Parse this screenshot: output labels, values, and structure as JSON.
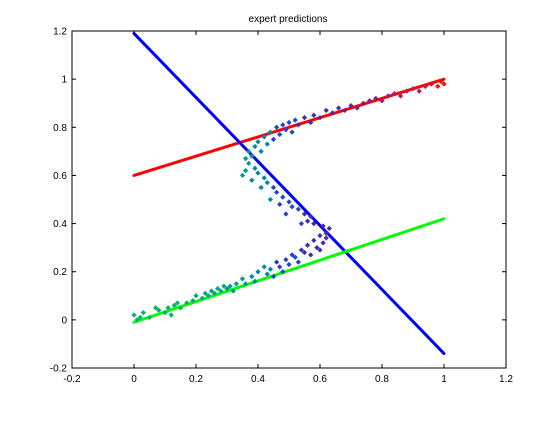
{
  "chart_data": {
    "type": "scatter",
    "title": "expert predictions",
    "xlabel": "",
    "ylabel": "",
    "xlim": [
      -0.2,
      1.2
    ],
    "ylim": [
      -0.2,
      1.2
    ],
    "grid": false,
    "x_ticks": [
      -0.2,
      0,
      0.2,
      0.4,
      0.6,
      0.8,
      1,
      1.2
    ],
    "y_ticks": [
      -0.2,
      0,
      0.2,
      0.4,
      0.6,
      0.8,
      1,
      1.2
    ],
    "x_tick_labels": [
      "-0.2",
      "0",
      "0.2",
      "0.4",
      "0.6",
      "0.8",
      "1",
      "1.2"
    ],
    "y_tick_labels": [
      "-0.2",
      "0",
      "0.2",
      "0.4",
      "0.6",
      "0.8",
      "1",
      "1.2"
    ],
    "lines": [
      {
        "color": "#ff0000",
        "x": [
          0,
          1
        ],
        "y": [
          0.6,
          1.0
        ]
      },
      {
        "color": "#0000ff",
        "x": [
          0,
          1
        ],
        "y": [
          1.19,
          -0.14
        ]
      },
      {
        "color": "#00ff00",
        "x": [
          0,
          1
        ],
        "y": [
          -0.01,
          0.42
        ]
      }
    ],
    "scatter_points": [
      {
        "x": 0.0,
        "y": 0.02,
        "color": "#00b36b"
      },
      {
        "x": 0.01,
        "y": 0.0,
        "color": "#00b36b"
      },
      {
        "x": 0.02,
        "y": 0.01,
        "color": "#00b36b"
      },
      {
        "x": 0.03,
        "y": 0.03,
        "color": "#00b36b"
      },
      {
        "x": 0.05,
        "y": 0.01,
        "color": "#00b36b"
      },
      {
        "x": 0.07,
        "y": 0.05,
        "color": "#00b36b"
      },
      {
        "x": 0.08,
        "y": 0.04,
        "color": "#00b36b"
      },
      {
        "x": 0.1,
        "y": 0.03,
        "color": "#00b36b"
      },
      {
        "x": 0.11,
        "y": 0.05,
        "color": "#00b36b"
      },
      {
        "x": 0.12,
        "y": 0.02,
        "color": "#00b36b"
      },
      {
        "x": 0.13,
        "y": 0.06,
        "color": "#00b36b"
      },
      {
        "x": 0.14,
        "y": 0.07,
        "color": "#00b36b"
      },
      {
        "x": 0.15,
        "y": 0.05,
        "color": "#00b36b"
      },
      {
        "x": 0.17,
        "y": 0.07,
        "color": "#00b36b"
      },
      {
        "x": 0.19,
        "y": 0.08,
        "color": "#00a880"
      },
      {
        "x": 0.2,
        "y": 0.1,
        "color": "#00a880"
      },
      {
        "x": 0.22,
        "y": 0.09,
        "color": "#00a880"
      },
      {
        "x": 0.23,
        "y": 0.11,
        "color": "#00a880"
      },
      {
        "x": 0.24,
        "y": 0.1,
        "color": "#00a880"
      },
      {
        "x": 0.25,
        "y": 0.12,
        "color": "#00a880"
      },
      {
        "x": 0.26,
        "y": 0.11,
        "color": "#00a880"
      },
      {
        "x": 0.27,
        "y": 0.13,
        "color": "#00a880"
      },
      {
        "x": 0.28,
        "y": 0.12,
        "color": "#00a880"
      },
      {
        "x": 0.29,
        "y": 0.14,
        "color": "#00a880"
      },
      {
        "x": 0.3,
        "y": 0.13,
        "color": "#009995"
      },
      {
        "x": 0.31,
        "y": 0.14,
        "color": "#009995"
      },
      {
        "x": 0.32,
        "y": 0.12,
        "color": "#009995"
      },
      {
        "x": 0.33,
        "y": 0.15,
        "color": "#009995"
      },
      {
        "x": 0.35,
        "y": 0.17,
        "color": "#009995"
      },
      {
        "x": 0.36,
        "y": 0.15,
        "color": "#009995"
      },
      {
        "x": 0.38,
        "y": 0.18,
        "color": "#0088a0"
      },
      {
        "x": 0.39,
        "y": 0.16,
        "color": "#0088a0"
      },
      {
        "x": 0.4,
        "y": 0.2,
        "color": "#0088a0"
      },
      {
        "x": 0.42,
        "y": 0.22,
        "color": "#0088a0"
      },
      {
        "x": 0.43,
        "y": 0.19,
        "color": "#0088a0"
      },
      {
        "x": 0.44,
        "y": 0.21,
        "color": "#0088a0"
      },
      {
        "x": 0.45,
        "y": 0.18,
        "color": "#2244cc"
      },
      {
        "x": 0.46,
        "y": 0.24,
        "color": "#2244cc"
      },
      {
        "x": 0.47,
        "y": 0.22,
        "color": "#2244cc"
      },
      {
        "x": 0.48,
        "y": 0.2,
        "color": "#2244cc"
      },
      {
        "x": 0.49,
        "y": 0.25,
        "color": "#2244cc"
      },
      {
        "x": 0.5,
        "y": 0.23,
        "color": "#2244cc"
      },
      {
        "x": 0.51,
        "y": 0.27,
        "color": "#2244cc"
      },
      {
        "x": 0.52,
        "y": 0.26,
        "color": "#2244cc"
      },
      {
        "x": 0.53,
        "y": 0.24,
        "color": "#2244cc"
      },
      {
        "x": 0.54,
        "y": 0.29,
        "color": "#3a2fb0"
      },
      {
        "x": 0.55,
        "y": 0.28,
        "color": "#3a2fb0"
      },
      {
        "x": 0.56,
        "y": 0.31,
        "color": "#3a2fb0"
      },
      {
        "x": 0.57,
        "y": 0.27,
        "color": "#3a2fb0"
      },
      {
        "x": 0.58,
        "y": 0.33,
        "color": "#3a2fb0"
      },
      {
        "x": 0.59,
        "y": 0.3,
        "color": "#3a2fb0"
      },
      {
        "x": 0.6,
        "y": 0.35,
        "color": "#4b2aa8"
      },
      {
        "x": 0.61,
        "y": 0.32,
        "color": "#4b2aa8"
      },
      {
        "x": 0.62,
        "y": 0.36,
        "color": "#4b2aa8"
      },
      {
        "x": 0.6,
        "y": 0.29,
        "color": "#4b2aa8"
      },
      {
        "x": 0.62,
        "y": 0.34,
        "color": "#4b2aa8"
      },
      {
        "x": 0.63,
        "y": 0.38,
        "color": "#4b2aa8"
      },
      {
        "x": 0.61,
        "y": 0.39,
        "color": "#4b2aa8"
      },
      {
        "x": 0.58,
        "y": 0.4,
        "color": "#3a2fb0"
      },
      {
        "x": 0.56,
        "y": 0.41,
        "color": "#3a2fb0"
      },
      {
        "x": 0.57,
        "y": 0.43,
        "color": "#3a2fb0"
      },
      {
        "x": 0.55,
        "y": 0.44,
        "color": "#3a2fb0"
      },
      {
        "x": 0.54,
        "y": 0.4,
        "color": "#2244cc"
      },
      {
        "x": 0.53,
        "y": 0.46,
        "color": "#2244cc"
      },
      {
        "x": 0.51,
        "y": 0.47,
        "color": "#2244cc"
      },
      {
        "x": 0.5,
        "y": 0.49,
        "color": "#2244cc"
      },
      {
        "x": 0.49,
        "y": 0.44,
        "color": "#2244cc"
      },
      {
        "x": 0.48,
        "y": 0.51,
        "color": "#2244cc"
      },
      {
        "x": 0.47,
        "y": 0.48,
        "color": "#2244cc"
      },
      {
        "x": 0.46,
        "y": 0.53,
        "color": "#2244cc"
      },
      {
        "x": 0.45,
        "y": 0.55,
        "color": "#2244cc"
      },
      {
        "x": 0.44,
        "y": 0.5,
        "color": "#0088a0"
      },
      {
        "x": 0.43,
        "y": 0.57,
        "color": "#0088a0"
      },
      {
        "x": 0.42,
        "y": 0.59,
        "color": "#0088a0"
      },
      {
        "x": 0.41,
        "y": 0.55,
        "color": "#0088a0"
      },
      {
        "x": 0.4,
        "y": 0.61,
        "color": "#0088a0"
      },
      {
        "x": 0.39,
        "y": 0.63,
        "color": "#0088a0"
      },
      {
        "x": 0.38,
        "y": 0.58,
        "color": "#0088a0"
      },
      {
        "x": 0.37,
        "y": 0.65,
        "color": "#009995"
      },
      {
        "x": 0.36,
        "y": 0.62,
        "color": "#009995"
      },
      {
        "x": 0.35,
        "y": 0.6,
        "color": "#009995"
      },
      {
        "x": 0.36,
        "y": 0.67,
        "color": "#009995"
      },
      {
        "x": 0.37,
        "y": 0.7,
        "color": "#009995"
      },
      {
        "x": 0.38,
        "y": 0.68,
        "color": "#009995"
      },
      {
        "x": 0.39,
        "y": 0.72,
        "color": "#0088a0"
      },
      {
        "x": 0.4,
        "y": 0.74,
        "color": "#0088a0"
      },
      {
        "x": 0.41,
        "y": 0.7,
        "color": "#0088a0"
      },
      {
        "x": 0.42,
        "y": 0.76,
        "color": "#0088a0"
      },
      {
        "x": 0.43,
        "y": 0.73,
        "color": "#0088a0"
      },
      {
        "x": 0.44,
        "y": 0.78,
        "color": "#0088a0"
      },
      {
        "x": 0.45,
        "y": 0.75,
        "color": "#2244cc"
      },
      {
        "x": 0.46,
        "y": 0.8,
        "color": "#2244cc"
      },
      {
        "x": 0.47,
        "y": 0.77,
        "color": "#2244cc"
      },
      {
        "x": 0.48,
        "y": 0.81,
        "color": "#2244cc"
      },
      {
        "x": 0.49,
        "y": 0.79,
        "color": "#2244cc"
      },
      {
        "x": 0.5,
        "y": 0.82,
        "color": "#2244cc"
      },
      {
        "x": 0.51,
        "y": 0.78,
        "color": "#2244cc"
      },
      {
        "x": 0.52,
        "y": 0.83,
        "color": "#2244cc"
      },
      {
        "x": 0.53,
        "y": 0.81,
        "color": "#3a2fb0"
      },
      {
        "x": 0.55,
        "y": 0.84,
        "color": "#3a2fb0"
      },
      {
        "x": 0.57,
        "y": 0.82,
        "color": "#3a2fb0"
      },
      {
        "x": 0.58,
        "y": 0.85,
        "color": "#3a2fb0"
      },
      {
        "x": 0.6,
        "y": 0.84,
        "color": "#4b2aa8"
      },
      {
        "x": 0.62,
        "y": 0.87,
        "color": "#4b2aa8"
      },
      {
        "x": 0.64,
        "y": 0.86,
        "color": "#5a25a0"
      },
      {
        "x": 0.66,
        "y": 0.88,
        "color": "#5a25a0"
      },
      {
        "x": 0.68,
        "y": 0.87,
        "color": "#6a2298"
      },
      {
        "x": 0.7,
        "y": 0.89,
        "color": "#6a2298"
      },
      {
        "x": 0.72,
        "y": 0.88,
        "color": "#7a2090"
      },
      {
        "x": 0.74,
        "y": 0.9,
        "color": "#7a2090"
      },
      {
        "x": 0.76,
        "y": 0.91,
        "color": "#8a1e88"
      },
      {
        "x": 0.78,
        "y": 0.92,
        "color": "#8a1e88"
      },
      {
        "x": 0.8,
        "y": 0.91,
        "color": "#9a1c80"
      },
      {
        "x": 0.82,
        "y": 0.93,
        "color": "#9a1c80"
      },
      {
        "x": 0.84,
        "y": 0.94,
        "color": "#aa1a78"
      },
      {
        "x": 0.86,
        "y": 0.93,
        "color": "#aa1a78"
      },
      {
        "x": 0.88,
        "y": 0.95,
        "color": "#ba1860"
      },
      {
        "x": 0.9,
        "y": 0.96,
        "color": "#ba1860"
      },
      {
        "x": 0.92,
        "y": 0.95,
        "color": "#ca1648"
      },
      {
        "x": 0.94,
        "y": 0.97,
        "color": "#ca1648"
      },
      {
        "x": 0.96,
        "y": 0.98,
        "color": "#da1430"
      },
      {
        "x": 0.98,
        "y": 0.97,
        "color": "#ea1218"
      },
      {
        "x": 0.99,
        "y": 0.99,
        "color": "#ea1218"
      },
      {
        "x": 1.0,
        "y": 0.98,
        "color": "#ea1218"
      }
    ]
  }
}
